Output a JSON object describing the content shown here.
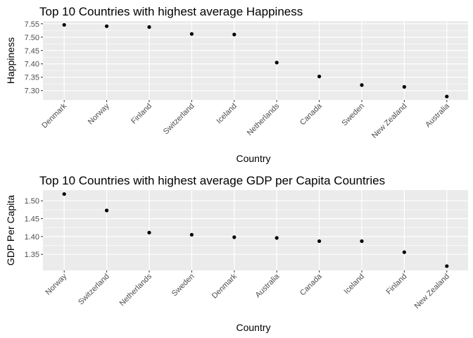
{
  "chart_data": [
    {
      "type": "scatter",
      "title": "Top 10 Countries with highest average Happiness",
      "xlabel": "Country",
      "ylabel": "Happiness",
      "categories": [
        "Denmark",
        "Norway",
        "Finland",
        "Switzerland",
        "Iceland",
        "Netherlands",
        "Canada",
        "Sweden",
        "New Zealand",
        "Australia"
      ],
      "values": [
        7.546,
        7.541,
        7.538,
        7.512,
        7.51,
        7.405,
        7.353,
        7.321,
        7.314,
        7.278
      ],
      "yticks": [
        7.3,
        7.35,
        7.4,
        7.45,
        7.5,
        7.55
      ],
      "ytick_labels": [
        "7.30",
        "7.35",
        "7.40",
        "7.45",
        "7.50",
        "7.55"
      ],
      "ylim": [
        7.265,
        7.56
      ],
      "grid": true,
      "point_color": "#000000",
      "panel_color": "#ebebeb",
      "grid_color": "#ffffff"
    },
    {
      "type": "scatter",
      "title": "Top 10 Countries with highest average GDP per Capita Countries",
      "xlabel": "Country",
      "ylabel": "GDP Per Capita",
      "categories": [
        "Norway",
        "Switzerland",
        "Netherlands",
        "Sweden",
        "Denmark",
        "Australia",
        "Canada",
        "Iceland",
        "Finland",
        "New Zealand"
      ],
      "values": [
        1.519,
        1.473,
        1.411,
        1.405,
        1.398,
        1.396,
        1.387,
        1.387,
        1.356,
        1.317
      ],
      "yticks": [
        1.35,
        1.4,
        1.45,
        1.5
      ],
      "ytick_labels": [
        "1.35",
        "1.40",
        "1.45",
        "1.50"
      ],
      "ylim": [
        1.305,
        1.53
      ],
      "grid": true,
      "point_color": "#000000",
      "panel_color": "#ebebeb",
      "grid_color": "#ffffff"
    }
  ]
}
